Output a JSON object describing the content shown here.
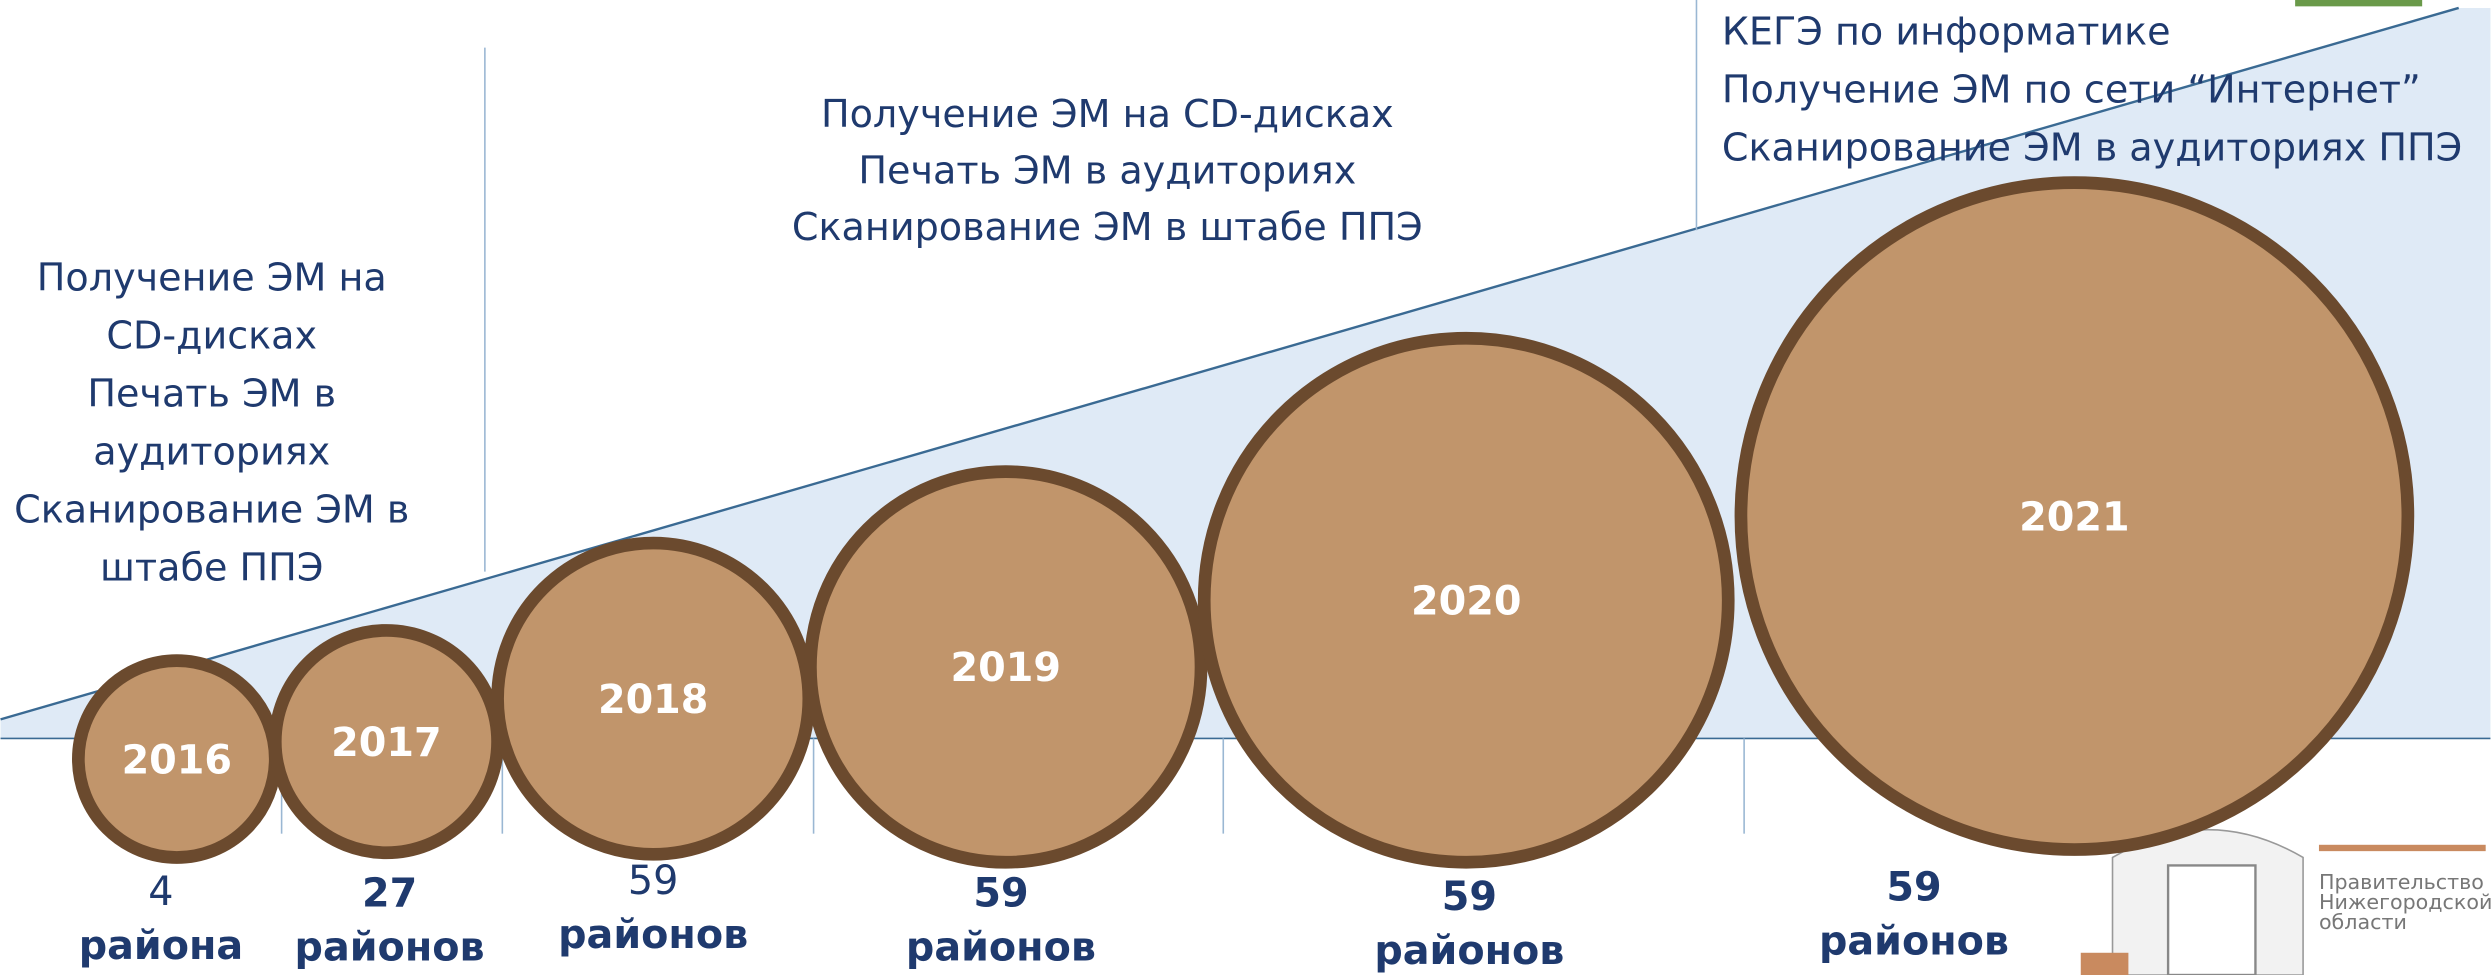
{
  "left_block": {
    "lines": [
      "Получение ЭМ на",
      "CD-дисках",
      "Печать ЭМ в",
      "аудиториях",
      "Сканирование ЭМ в",
      "штабе ППЭ"
    ]
  },
  "middle_block": {
    "lines": [
      "Получение ЭМ на CD-дисках",
      "Печать ЭМ в аудиториях",
      "Сканирование ЭМ в штабе ППЭ"
    ]
  },
  "right_block": {
    "lines": [
      "КЕГЭ по информатике",
      "Получение ЭМ по сети “Интернет”",
      "Сканирование ЭМ в аудиториях ППЭ"
    ]
  },
  "circles": [
    {
      "year": "2016",
      "count": "4",
      "unit": "района"
    },
    {
      "year": "2017",
      "count": "27",
      "unit": "районов"
    },
    {
      "year": "2018",
      "count": "59",
      "unit": "районов"
    },
    {
      "year": "2019",
      "count": "59",
      "unit": "районов"
    },
    {
      "year": "2020",
      "count": "59",
      "unit": "районов"
    },
    {
      "year": "2021",
      "count": "59",
      "unit": "районов"
    }
  ],
  "logo": {
    "lines": [
      "Правительство",
      "Нижегородской",
      "области"
    ]
  }
}
